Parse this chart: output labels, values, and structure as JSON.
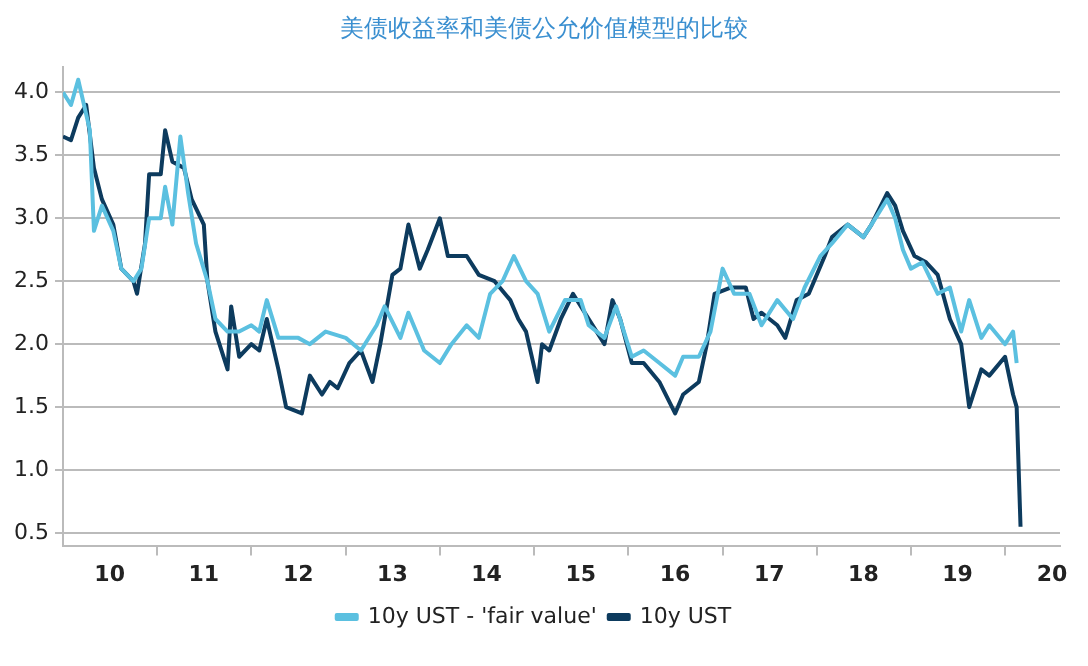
{
  "chart_data": {
    "type": "line",
    "title": "美债收益率和美债公允价值模型的比较",
    "series": [
      {
        "name": "10y UST - 'fair value'",
        "color": "#5bc0e0",
        "x": [
          "2010-01-01",
          "2010-02-01",
          "2010-03-01",
          "2010-04-15",
          "2010-05-01",
          "2010-06-01",
          "2010-07-15",
          "2010-08-15",
          "2010-10-01",
          "2010-11-01",
          "2010-12-01",
          "2011-01-15",
          "2011-02-01",
          "2011-03-01",
          "2011-04-01",
          "2011-05-01",
          "2011-06-01",
          "2011-07-15",
          "2011-08-15",
          "2011-10-01",
          "2011-11-15",
          "2012-01-01",
          "2012-02-01",
          "2012-03-01",
          "2012-04-15",
          "2012-07-01",
          "2012-08-15",
          "2012-10-15",
          "2013-01-01",
          "2013-03-01",
          "2013-05-01",
          "2013-06-01",
          "2013-08-01",
          "2013-09-01",
          "2013-11-01",
          "2014-01-01",
          "2014-02-15",
          "2014-04-15",
          "2014-06-01",
          "2014-07-15",
          "2014-09-01",
          "2014-10-15",
          "2014-12-01",
          "2015-01-15",
          "2015-03-01",
          "2015-05-01",
          "2015-07-01",
          "2015-08-01",
          "2015-10-01",
          "2015-11-15",
          "2016-01-15",
          "2016-03-01",
          "2016-05-01",
          "2016-07-01",
          "2016-08-01",
          "2016-10-01",
          "2016-11-15",
          "2017-01-01",
          "2017-02-15",
          "2017-04-15",
          "2017-06-01",
          "2017-08-01",
          "2017-10-01",
          "2017-11-15",
          "2018-01-15",
          "2018-03-01",
          "2018-05-01",
          "2018-07-01",
          "2018-08-01",
          "2018-10-01",
          "2018-11-01",
          "2018-12-01",
          "2019-01-01",
          "2019-02-15",
          "2019-04-15",
          "2019-06-01",
          "2019-07-15",
          "2019-08-15",
          "2019-10-01",
          "2019-11-01",
          "2020-01-01",
          "2020-02-01",
          "2020-02-15"
        ],
        "values": [
          4.0,
          3.9,
          4.1,
          3.7,
          2.9,
          3.1,
          2.9,
          2.6,
          2.5,
          2.6,
          3.0,
          3.0,
          3.25,
          2.95,
          3.65,
          3.2,
          2.8,
          2.5,
          2.2,
          2.1,
          2.1,
          2.15,
          2.1,
          2.35,
          2.05,
          2.05,
          2.0,
          2.1,
          2.05,
          1.95,
          2.15,
          2.3,
          2.05,
          2.25,
          1.95,
          1.85,
          2.0,
          2.15,
          2.05,
          2.4,
          2.5,
          2.7,
          2.5,
          2.4,
          2.1,
          2.35,
          2.35,
          2.15,
          2.05,
          2.3,
          1.9,
          1.95,
          1.85,
          1.75,
          1.9,
          1.9,
          2.1,
          2.6,
          2.4,
          2.4,
          2.15,
          2.35,
          2.2,
          2.45,
          2.7,
          2.8,
          2.95,
          2.85,
          2.95,
          3.15,
          3.0,
          2.75,
          2.6,
          2.65,
          2.4,
          2.45,
          2.1,
          2.35,
          2.05,
          2.15,
          2.0,
          2.1,
          1.85
        ]
      },
      {
        "name": "10y UST",
        "color": "#0d3b5e",
        "x": [
          "2010-01-01",
          "2010-02-01",
          "2010-03-01",
          "2010-04-01",
          "2010-05-01",
          "2010-06-01",
          "2010-07-15",
          "2010-08-15",
          "2010-10-01",
          "2010-10-15",
          "2010-11-15",
          "2010-12-01",
          "2011-01-15",
          "2011-02-01",
          "2011-03-01",
          "2011-04-15",
          "2011-05-15",
          "2011-07-01",
          "2011-07-15",
          "2011-08-15",
          "2011-10-01",
          "2011-10-15",
          "2011-11-15",
          "2012-01-01",
          "2012-02-01",
          "2012-03-01",
          "2012-04-15",
          "2012-05-15",
          "2012-07-15",
          "2012-08-15",
          "2012-10-01",
          "2012-11-01",
          "2012-12-01",
          "2013-01-15",
          "2013-03-01",
          "2013-04-15",
          "2013-05-15",
          "2013-07-01",
          "2013-08-01",
          "2013-09-01",
          "2013-10-15",
          "2013-11-15",
          "2014-01-01",
          "2014-02-01",
          "2014-04-15",
          "2014-06-01",
          "2014-08-01",
          "2014-10-01",
          "2014-11-01",
          "2014-12-01",
          "2015-01-15",
          "2015-02-01",
          "2015-03-01",
          "2015-04-15",
          "2015-06-01",
          "2015-08-01",
          "2015-10-01",
          "2015-11-01",
          "2015-12-01",
          "2016-01-15",
          "2016-03-01",
          "2016-05-01",
          "2016-07-01",
          "2016-08-01",
          "2016-10-01",
          "2016-11-01",
          "2016-12-01",
          "2017-02-01",
          "2017-04-01",
          "2017-05-01",
          "2017-06-01",
          "2017-08-01",
          "2017-09-01",
          "2017-10-15",
          "2017-12-01",
          "2018-02-01",
          "2018-03-01",
          "2018-05-01",
          "2018-07-01",
          "2018-08-01",
          "2018-10-01",
          "2018-11-01",
          "2018-12-01",
          "2019-01-15",
          "2019-03-01",
          "2019-04-15",
          "2019-06-01",
          "2019-07-15",
          "2019-08-15",
          "2019-10-01",
          "2019-11-01",
          "2020-01-01",
          "2020-02-01",
          "2020-02-15",
          "2020-03-01"
        ],
        "values": [
          3.65,
          3.62,
          3.8,
          3.9,
          3.4,
          3.15,
          2.95,
          2.6,
          2.5,
          2.4,
          2.8,
          3.35,
          3.35,
          3.7,
          3.45,
          3.4,
          3.15,
          2.95,
          2.5,
          2.1,
          1.8,
          2.3,
          1.9,
          2.0,
          1.95,
          2.2,
          1.8,
          1.5,
          1.45,
          1.75,
          1.6,
          1.7,
          1.65,
          1.85,
          1.95,
          1.7,
          2.0,
          2.55,
          2.6,
          2.95,
          2.6,
          2.75,
          3.0,
          2.7,
          2.7,
          2.55,
          2.5,
          2.35,
          2.2,
          2.1,
          1.7,
          2.0,
          1.95,
          2.2,
          2.4,
          2.2,
          2.0,
          2.35,
          2.2,
          1.85,
          1.85,
          1.7,
          1.45,
          1.6,
          1.7,
          2.0,
          2.4,
          2.45,
          2.45,
          2.2,
          2.25,
          2.15,
          2.05,
          2.35,
          2.4,
          2.7,
          2.85,
          2.95,
          2.85,
          2.95,
          3.2,
          3.1,
          2.9,
          2.7,
          2.65,
          2.55,
          2.2,
          2.0,
          1.5,
          1.8,
          1.75,
          1.9,
          1.6,
          1.5,
          0.55
        ]
      }
    ],
    "xlim": [
      "2010-01-01",
      "2020-08-01"
    ],
    "xticks": [
      {
        "value": "2010-07-01",
        "label": "10"
      },
      {
        "value": "2011-01-01",
        "label": null
      },
      {
        "value": "2011-07-01",
        "label": "11"
      },
      {
        "value": "2012-01-01",
        "label": null
      },
      {
        "value": "2012-07-01",
        "label": "12"
      },
      {
        "value": "2013-01-01",
        "label": null
      },
      {
        "value": "2013-07-01",
        "label": "13"
      },
      {
        "value": "2014-01-01",
        "label": null
      },
      {
        "value": "2014-07-01",
        "label": "14"
      },
      {
        "value": "2015-01-01",
        "label": null
      },
      {
        "value": "2015-07-01",
        "label": "15"
      },
      {
        "value": "2016-01-01",
        "label": null
      },
      {
        "value": "2016-07-01",
        "label": "16"
      },
      {
        "value": "2017-01-01",
        "label": null
      },
      {
        "value": "2017-07-01",
        "label": "17"
      },
      {
        "value": "2018-01-01",
        "label": null
      },
      {
        "value": "2018-07-01",
        "label": "18"
      },
      {
        "value": "2019-01-01",
        "label": null
      },
      {
        "value": "2019-07-01",
        "label": "19"
      },
      {
        "value": "2020-01-01",
        "label": null
      },
      {
        "value": "2020-07-01",
        "label": "20"
      }
    ],
    "ylim": [
      0.4,
      4.2
    ],
    "yticks": [
      {
        "value": 0.5,
        "label": "0.5"
      },
      {
        "value": 1.0,
        "label": "1.0"
      },
      {
        "value": 1.5,
        "label": "1.5"
      },
      {
        "value": 2.0,
        "label": "2.0"
      },
      {
        "value": 2.5,
        "label": "2.5"
      },
      {
        "value": 3.0,
        "label": "3.0"
      },
      {
        "value": 3.5,
        "label": "3.5"
      },
      {
        "value": 4.0,
        "label": "4.0"
      }
    ],
    "grid": "y",
    "legend": "bottom",
    "marker": "none",
    "line_style": "solid"
  }
}
